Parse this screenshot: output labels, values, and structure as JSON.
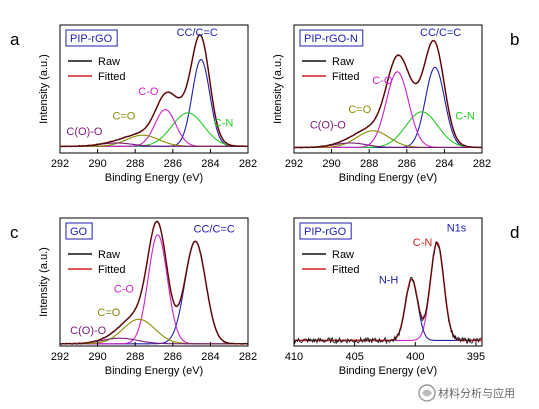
{
  "figure": {
    "watermark": "材料分析与应用",
    "colors": {
      "raw": "#111111",
      "fitted": "#d02020",
      "c_c": "#1f1fb0",
      "c_n": "#22cc22",
      "c_o": "#cc22cc",
      "c_eq_o": "#8b8b00",
      "c_o_o": "#7a1a7a",
      "n_h": "#1f1fb0",
      "label_blue": "#1f1fb0"
    }
  },
  "chart_data": [
    {
      "panel": "a",
      "type": "line",
      "sample_label": "PIP-rGO",
      "xlabel": "Binding Energy (eV)",
      "ylabel": "Intensity (a.u.)",
      "xlim": [
        292,
        282
      ],
      "ylim": [
        0,
        1.15
      ],
      "xticks": [
        292,
        290,
        288,
        286,
        284,
        282
      ],
      "legend": {
        "position": "top-left",
        "entries": [
          {
            "label": "Raw",
            "color_key": "raw"
          },
          {
            "label": "Fitted",
            "color_key": "fitted"
          }
        ]
      },
      "baseline": 0.06,
      "components": [
        {
          "label": "CC/C=C",
          "center": 284.5,
          "height": 0.78,
          "fwhm": 1.1,
          "color_key": "c_c",
          "label_color_key": "label_blue",
          "label_at": [
            284.7,
            1.05
          ]
        },
        {
          "label": "C-N",
          "center": 285.2,
          "height": 0.3,
          "fwhm": 2.0,
          "color_key": "c_n",
          "label_color_key": "c_n",
          "label_at": [
            283.3,
            0.24
          ]
        },
        {
          "label": "C-O",
          "center": 286.4,
          "height": 0.33,
          "fwhm": 1.3,
          "color_key": "c_o",
          "label_color_key": "c_o",
          "label_at": [
            287.3,
            0.52
          ]
        },
        {
          "label": "C=O",
          "center": 287.6,
          "height": 0.1,
          "fwhm": 2.0,
          "color_key": "c_eq_o",
          "label_color_key": "c_eq_o",
          "label_at": [
            288.6,
            0.3
          ]
        },
        {
          "label": "C(O)-O",
          "center": 289.0,
          "height": 0.03,
          "fwhm": 2.0,
          "color_key": "c_o_o",
          "label_color_key": "c_o_o",
          "label_at": [
            290.7,
            0.16
          ]
        }
      ]
    },
    {
      "panel": "b",
      "type": "line",
      "sample_label": "PIP-rGO-N",
      "xlabel": "Binding Energy (eV)",
      "ylabel": "Intensity (a.u.)",
      "xlim": [
        292,
        282
      ],
      "ylim": [
        0,
        1.15
      ],
      "xticks": [
        292,
        290,
        288,
        286,
        284,
        282
      ],
      "legend": {
        "position": "top-left",
        "entries": [
          {
            "label": "Raw",
            "color_key": "raw"
          },
          {
            "label": "Fitted",
            "color_key": "fitted"
          }
        ]
      },
      "baseline": 0.05,
      "components": [
        {
          "label": "CC/C=C",
          "center": 284.5,
          "height": 0.72,
          "fwhm": 1.2,
          "color_key": "c_c",
          "label_color_key": "label_blue",
          "label_at": [
            284.2,
            1.05
          ]
        },
        {
          "label": "C-N",
          "center": 285.2,
          "height": 0.32,
          "fwhm": 2.0,
          "color_key": "c_n",
          "label_color_key": "c_n",
          "label_at": [
            282.9,
            0.3
          ]
        },
        {
          "label": "C-O",
          "center": 286.5,
          "height": 0.68,
          "fwhm": 1.4,
          "color_key": "c_o",
          "label_color_key": "c_o",
          "label_at": [
            287.3,
            0.62
          ]
        },
        {
          "label": "C=O",
          "center": 287.8,
          "height": 0.15,
          "fwhm": 2.0,
          "color_key": "c_eq_o",
          "label_color_key": "c_eq_o",
          "label_at": [
            288.5,
            0.36
          ]
        },
        {
          "label": "C(O)-O",
          "center": 289.0,
          "height": 0.04,
          "fwhm": 2.0,
          "color_key": "c_o_o",
          "label_color_key": "c_o_o",
          "label_at": [
            290.2,
            0.22
          ]
        }
      ]
    },
    {
      "panel": "c",
      "type": "line",
      "sample_label": "GO",
      "xlabel": "Binding Energy (eV)",
      "ylabel": "Intensity (a.u.)",
      "xlim": [
        292,
        282
      ],
      "ylim": [
        0,
        1.15
      ],
      "xticks": [
        292,
        290,
        288,
        286,
        284,
        282
      ],
      "legend": {
        "position": "top-left",
        "entries": [
          {
            "label": "Raw",
            "color_key": "raw"
          },
          {
            "label": "Fitted",
            "color_key": "fitted"
          }
        ]
      },
      "baseline": 0.02,
      "components": [
        {
          "label": "CC/C=C",
          "center": 284.8,
          "height": 0.92,
          "fwhm": 1.3,
          "color_key": "c_c",
          "label_color_key": "label_blue",
          "label_at": [
            283.8,
            1.02
          ]
        },
        {
          "label": "C-O",
          "center": 286.8,
          "height": 0.98,
          "fwhm": 1.2,
          "color_key": "c_o",
          "label_color_key": "c_o",
          "label_at": [
            288.6,
            0.48
          ]
        },
        {
          "label": "C=O",
          "center": 287.8,
          "height": 0.22,
          "fwhm": 2.0,
          "color_key": "c_eq_o",
          "label_color_key": "c_eq_o",
          "label_at": [
            289.4,
            0.27
          ]
        },
        {
          "label": "C(O)-O",
          "center": 288.8,
          "height": 0.05,
          "fwhm": 2.2,
          "color_key": "c_o_o",
          "label_color_key": "c_o_o",
          "label_at": [
            290.5,
            0.11
          ]
        }
      ]
    },
    {
      "panel": "d",
      "type": "line",
      "sample_label": "PIP-rGO",
      "annotation": "N1s",
      "annotation_at": [
        396.6,
        1.03
      ],
      "xlabel": "Binding Energy (eV)",
      "ylabel": "",
      "xlim": [
        410,
        394.5
      ],
      "ylim": [
        0,
        1.15
      ],
      "xticks": [
        410,
        405,
        400,
        395
      ],
      "legend": {
        "position": "top-left",
        "entries": [
          {
            "label": "Raw",
            "color_key": "raw"
          },
          {
            "label": "Fitted",
            "color_key": "fitted"
          }
        ]
      },
      "baseline": 0.05,
      "noise": 0.025,
      "components": [
        {
          "label": "C-N",
          "center": 398.2,
          "height": 0.88,
          "fwhm": 1.3,
          "color_key": "c_o",
          "label_color_key": "fitted",
          "label_at": [
            399.4,
            0.9
          ]
        },
        {
          "label": "N-H",
          "center": 400.3,
          "height": 0.55,
          "fwhm": 1.2,
          "color_key": "n_h",
          "label_color_key": "label_blue",
          "label_at": [
            402.2,
            0.56
          ]
        }
      ]
    }
  ]
}
